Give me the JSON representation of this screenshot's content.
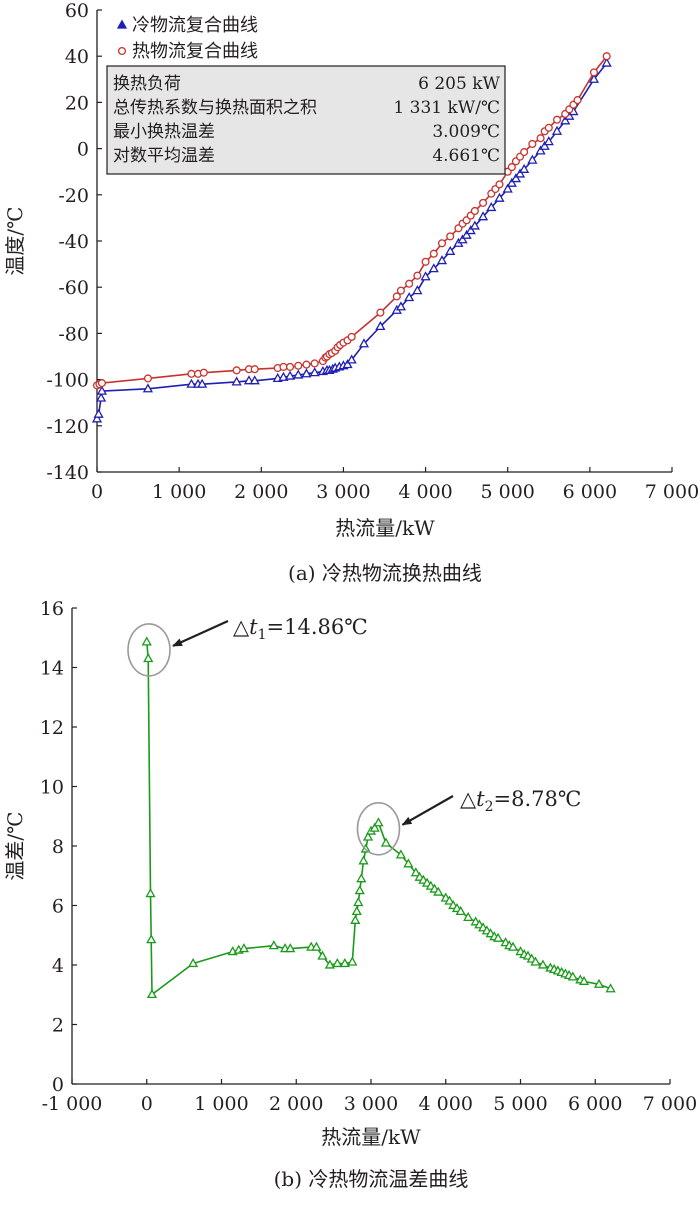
{
  "chart_data": [
    {
      "type": "line",
      "caption": "(a) 冷热物流换热曲线",
      "xlabel": "热流量/kW",
      "ylabel": "温度/℃",
      "xlim": [
        0,
        7000
      ],
      "ylim": [
        -140,
        60
      ],
      "xticks": [
        0,
        1000,
        2000,
        3000,
        4000,
        5000,
        6000,
        7000
      ],
      "xtick_labels": [
        "0",
        "1 000",
        "2 000",
        "3 000",
        "4 000",
        "5 000",
        "6 000",
        "7 000"
      ],
      "yticks": [
        -140,
        -120,
        -100,
        -80,
        -60,
        -40,
        -20,
        0,
        20,
        40,
        60
      ],
      "ytick_labels": [
        "-140",
        "-120",
        "-100",
        "-80",
        "-60",
        "-40",
        "-20",
        "0",
        "20",
        "40",
        "60"
      ],
      "legend_position": "top-left",
      "series": [
        {
          "name": "冷物流复合曲线",
          "color": "#1f1fb4",
          "marker": "triangle",
          "x": [
            0,
            20,
            50,
            60,
            620,
            1150,
            1230,
            1280,
            1700,
            1850,
            1920,
            2200,
            2270,
            2350,
            2450,
            2550,
            2650,
            2750,
            2800,
            2830,
            2870,
            2900,
            2950,
            3000,
            3050,
            3100,
            3250,
            3450,
            3650,
            3700,
            3800,
            3900,
            4000,
            4100,
            4200,
            4300,
            4400,
            4450,
            4500,
            4550,
            4600,
            4700,
            4800,
            4900,
            5000,
            5050,
            5100,
            5150,
            5200,
            5300,
            5400,
            5450,
            5500,
            5600,
            5700,
            5750,
            5800,
            6050,
            6205
          ],
          "y": [
            -117,
            -115,
            -108,
            -105,
            -104,
            -102,
            -102,
            -102,
            -101,
            -100.5,
            -100.5,
            -99.5,
            -99,
            -98.5,
            -98,
            -97.5,
            -97,
            -96.5,
            -96,
            -96,
            -95.5,
            -95,
            -94.5,
            -94,
            -93.5,
            -91.5,
            -84.5,
            -77,
            -70,
            -68.5,
            -64.5,
            -61.5,
            -55.5,
            -52,
            -48.5,
            -44.5,
            -41,
            -39.5,
            -37.5,
            -35.5,
            -33.5,
            -29.5,
            -25.5,
            -21.5,
            -17.5,
            -15,
            -13,
            -11,
            -9,
            -5,
            -1,
            1,
            3,
            7.5,
            12,
            14,
            16,
            30,
            37
          ]
        },
        {
          "name": "热物流复合曲线",
          "color": "#c8322d",
          "marker": "circle",
          "x": [
            0,
            30,
            60,
            620,
            1150,
            1230,
            1300,
            1700,
            1850,
            1920,
            2200,
            2270,
            2350,
            2450,
            2550,
            2650,
            2750,
            2780,
            2800,
            2830,
            2860,
            2900,
            2930,
            2960,
            3000,
            3050,
            3100,
            3450,
            3650,
            3700,
            3800,
            3900,
            4000,
            4100,
            4200,
            4300,
            4400,
            4450,
            4500,
            4550,
            4600,
            4700,
            4800,
            4850,
            4900,
            5000,
            5050,
            5100,
            5150,
            5200,
            5300,
            5400,
            5450,
            5500,
            5600,
            5700,
            5750,
            5800,
            5850,
            6050,
            6205
          ],
          "y": [
            -102.5,
            -102,
            -101.5,
            -99.5,
            -97.5,
            -97.5,
            -97,
            -96,
            -95.5,
            -95.5,
            -95,
            -94.5,
            -94.5,
            -94,
            -93.5,
            -93,
            -92,
            -90.5,
            -90,
            -89,
            -88.5,
            -87.5,
            -86,
            -85,
            -84,
            -83,
            -81.5,
            -71,
            -64,
            -61.5,
            -58.5,
            -55,
            -49,
            -45.5,
            -41,
            -38,
            -34.5,
            -32.5,
            -31,
            -29,
            -27,
            -23.5,
            -19.5,
            -17.5,
            -15.5,
            -10,
            -8,
            -5.5,
            -3.5,
            -1.5,
            2,
            4.5,
            7.5,
            9,
            12.5,
            15,
            17,
            19,
            21,
            33,
            40
          ]
        }
      ],
      "info_box": [
        {
          "label": "换热负荷",
          "value": "6 205 kW"
        },
        {
          "label": "总传热系数与换热面积之积",
          "value": "1 331 kW/℃"
        },
        {
          "label": "最小换热温差",
          "value": "3.009℃"
        },
        {
          "label": "对数平均温差",
          "value": "4.661℃"
        }
      ]
    },
    {
      "type": "line",
      "caption": "(b) 冷热物流温差曲线",
      "xlabel": "热流量/kW",
      "ylabel": "温差/℃",
      "xlim": [
        -1000,
        7000
      ],
      "ylim": [
        0,
        16
      ],
      "xticks": [
        -1000,
        0,
        1000,
        2000,
        3000,
        4000,
        5000,
        6000,
        7000
      ],
      "xtick_labels": [
        "-1 000",
        "0",
        "1 000",
        "2 000",
        "3 000",
        "4 000",
        "5 000",
        "6 000",
        "7 000"
      ],
      "yticks": [
        0,
        2,
        4,
        6,
        8,
        10,
        12,
        14,
        16
      ],
      "ytick_labels": [
        "0",
        "2",
        "4",
        "6",
        "8",
        "10",
        "12",
        "14",
        "16"
      ],
      "series": [
        {
          "color": "#1a9a1a",
          "marker": "triangle",
          "x": [
            0,
            20,
            50,
            60,
            70,
            620,
            1150,
            1230,
            1300,
            1700,
            1850,
            1920,
            2200,
            2270,
            2350,
            2450,
            2550,
            2650,
            2750,
            2790,
            2810,
            2830,
            2850,
            2870,
            2900,
            2930,
            2960,
            3000,
            3050,
            3100,
            3200,
            3400,
            3500,
            3600,
            3650,
            3700,
            3750,
            3800,
            3850,
            3900,
            4000,
            4050,
            4100,
            4150,
            4200,
            4300,
            4400,
            4450,
            4500,
            4550,
            4600,
            4650,
            4700,
            4800,
            4850,
            4900,
            5000,
            5050,
            5100,
            5150,
            5200,
            5300,
            5400,
            5450,
            5500,
            5550,
            5600,
            5650,
            5700,
            5800,
            5850,
            6050,
            6205
          ],
          "y": [
            14.86,
            14.3,
            6.4,
            4.85,
            3.01,
            4.05,
            4.45,
            4.5,
            4.55,
            4.65,
            4.55,
            4.55,
            4.6,
            4.6,
            4.3,
            4.0,
            4.05,
            4.05,
            4.1,
            5.5,
            5.8,
            6.1,
            6.5,
            6.9,
            7.5,
            7.9,
            8.3,
            8.5,
            8.6,
            8.78,
            8.1,
            7.7,
            7.4,
            7.1,
            6.95,
            6.85,
            6.75,
            6.65,
            6.55,
            6.45,
            6.25,
            6.15,
            6.0,
            5.9,
            5.8,
            5.6,
            5.45,
            5.35,
            5.25,
            5.15,
            5.05,
            4.95,
            4.9,
            4.75,
            4.65,
            4.6,
            4.45,
            4.35,
            4.3,
            4.2,
            4.1,
            4.0,
            3.9,
            3.85,
            3.8,
            3.75,
            3.7,
            3.65,
            3.6,
            3.5,
            3.45,
            3.35,
            3.2
          ]
        }
      ],
      "annotations": [
        {
          "prefix": "△",
          "var": "t",
          "sub": "1",
          "value": "=14.86℃",
          "at_x": 30,
          "at_y": 14.86
        },
        {
          "prefix": "△",
          "var": "t",
          "sub": "2",
          "value": "=8.78℃",
          "at_x": 3100,
          "at_y": 8.78
        }
      ]
    }
  ]
}
